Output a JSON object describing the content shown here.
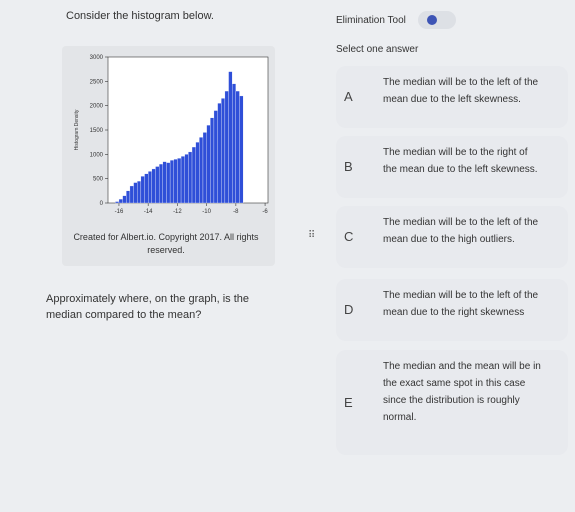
{
  "question": {
    "intro": "Consider the histogram below.",
    "caption": "Created for Albert.io. Copyright 2017. All rights reserved.",
    "text": "Approximately where, on the graph, is the median compared to the mean?"
  },
  "chart_data": {
    "type": "histogram",
    "y_label": "Histogram Density",
    "color": "#2f4fd8",
    "bins": [
      -16.25,
      -16,
      -15.75,
      -15.5,
      -15.25,
      -15,
      -14.75,
      -14.5,
      -14.25,
      -14,
      -13.75,
      -13.5,
      -13.25,
      -13,
      -12.75,
      -12.5,
      -12.25,
      -12,
      -11.75,
      -11.5,
      -11.25,
      -11,
      -10.75,
      -10.5,
      -10.25,
      -10,
      -9.75,
      -9.5,
      -9.25,
      -9,
      -8.75,
      -8.5,
      -8.25,
      -8,
      -7.75,
      -7.5
    ],
    "counts": [
      30,
      80,
      150,
      250,
      350,
      420,
      450,
      550,
      600,
      650,
      700,
      750,
      800,
      850,
      830,
      880,
      900,
      920,
      960,
      1000,
      1050,
      1150,
      1250,
      1350,
      1450,
      1600,
      1750,
      1900,
      2050,
      2150,
      2300,
      2700,
      2450,
      2300,
      2200
    ],
    "xlim": [
      -16.75,
      -5.8
    ],
    "xticks": [
      -16,
      -14,
      -12,
      -10,
      -8,
      -6
    ],
    "ylim": [
      0,
      3000
    ],
    "yticks": [
      0,
      500,
      1000,
      1500,
      2000,
      2500,
      3000
    ]
  },
  "tool": {
    "label": "Elimination Tool"
  },
  "prompt": "Select one answer",
  "answers": [
    {
      "letter": "A",
      "text": "The median will be to the left of the mean due to the left skewness."
    },
    {
      "letter": "B",
      "text": "The median will be to the right of the mean due to the left skewness."
    },
    {
      "letter": "C",
      "text": "The median will be to the left of the mean due to the high outliers."
    },
    {
      "letter": "D",
      "text": "The median will be to the left of the mean due to the right skewness"
    },
    {
      "letter": "E",
      "text": "The median and the mean will be in the exact same spot in this case since the distribution is roughly normal."
    }
  ]
}
